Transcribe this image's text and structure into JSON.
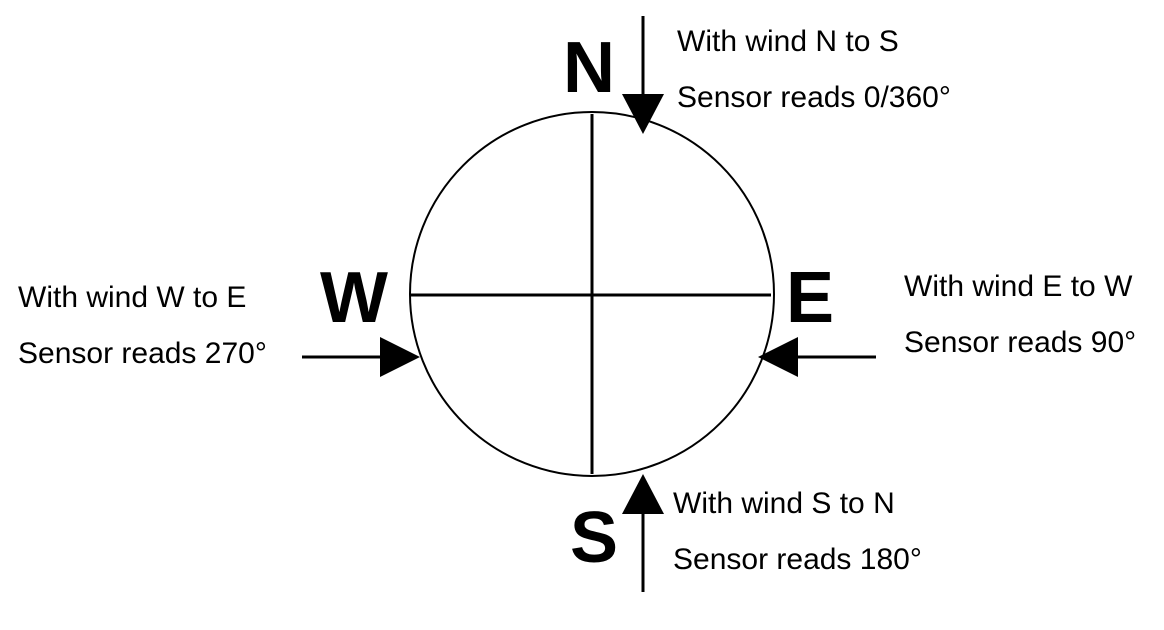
{
  "colors": {
    "stroke": "#000000",
    "background": "#ffffff"
  },
  "compass": {
    "north": {
      "letter": "N",
      "line1": "With wind N to S",
      "line2": "Sensor reads 0/360°"
    },
    "east": {
      "letter": "E",
      "line1": "With wind E to W",
      "line2": "Sensor reads 90°"
    },
    "south": {
      "letter": "S",
      "line1": "With wind S to N",
      "line2": "Sensor reads 180°"
    },
    "west": {
      "letter": "W",
      "line1": "With wind W to E",
      "line2": "Sensor reads 270°"
    }
  }
}
